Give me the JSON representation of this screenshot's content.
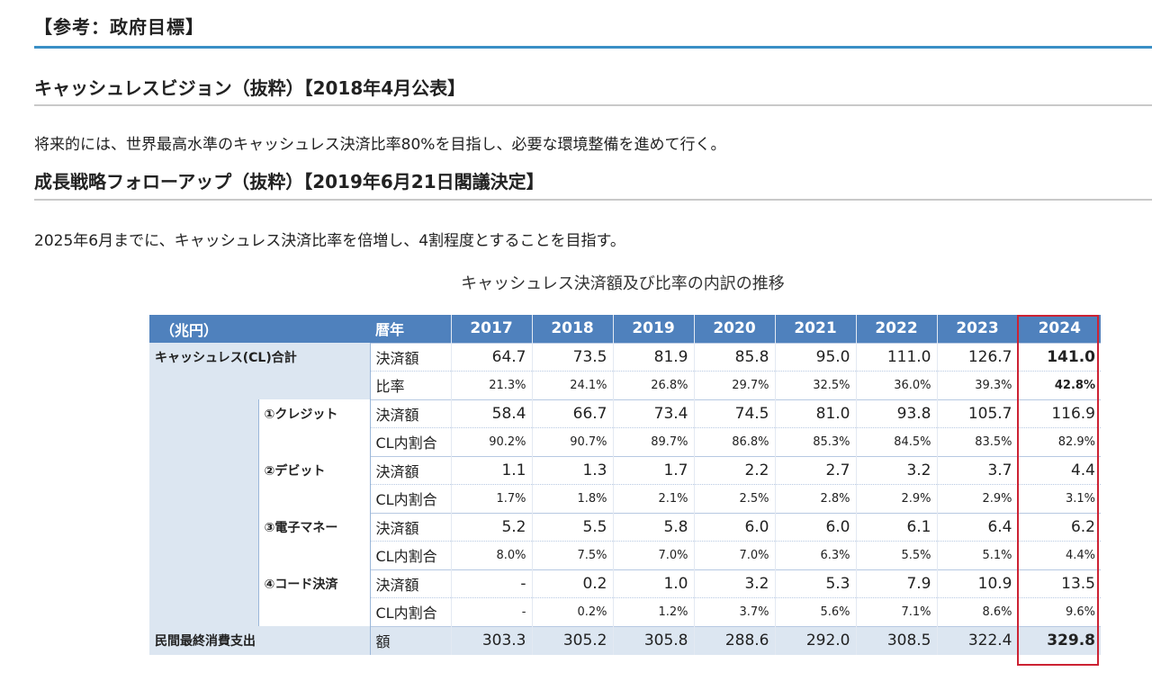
{
  "reference_heading": "【参考：政府目標】",
  "sections": [
    {
      "title": "キャッシュレスビジョン（抜粋）【2018年4月公表】",
      "text": "将来的には、世界最高水準のキャッシュレス決済比率80%を目指し、必要な環境整備を進めて行く。"
    },
    {
      "title": "成長戦略フォローアップ（抜粋）【2019年6月21日閣議決定】",
      "text": "2025年6月までに、キャッシュレス決済比率を倍増し、4割程度とすることを目指す。"
    }
  ],
  "table": {
    "title": "キャッシュレス決済額及び比率の内訳の推移",
    "unit": "（兆円）",
    "calendar_year": "暦年",
    "years": [
      "2017",
      "2018",
      "2019",
      "2020",
      "2021",
      "2022",
      "2023",
      "2024"
    ],
    "total": {
      "label": "キャッシュレス(CL)合計",
      "amount_label": "決済額",
      "amount": [
        "64.7",
        "73.5",
        "81.9",
        "85.8",
        "95.0",
        "111.0",
        "126.7",
        "141.0"
      ],
      "ratio_label": "比率",
      "ratio": [
        "21.3%",
        "24.1%",
        "26.8%",
        "29.7%",
        "32.5%",
        "36.0%",
        "39.3%",
        "42.8%"
      ]
    },
    "groups": [
      {
        "label": "①クレジット",
        "amount_label": "決済額",
        "amount": [
          "58.4",
          "66.7",
          "73.4",
          "74.5",
          "81.0",
          "93.8",
          "105.7",
          "116.9"
        ],
        "share_label": "CL内割合",
        "share": [
          "90.2%",
          "90.7%",
          "89.7%",
          "86.8%",
          "85.3%",
          "84.5%",
          "83.5%",
          "82.9%"
        ]
      },
      {
        "label": "②デビット",
        "amount_label": "決済額",
        "amount": [
          "1.1",
          "1.3",
          "1.7",
          "2.2",
          "2.7",
          "3.2",
          "3.7",
          "4.4"
        ],
        "share_label": "CL内割合",
        "share": [
          "1.7%",
          "1.8%",
          "2.1%",
          "2.5%",
          "2.8%",
          "2.9%",
          "2.9%",
          "3.1%"
        ]
      },
      {
        "label": "③電子マネー",
        "amount_label": "決済額",
        "amount": [
          "5.2",
          "5.5",
          "5.8",
          "6.0",
          "6.0",
          "6.1",
          "6.4",
          "6.2"
        ],
        "share_label": "CL内割合",
        "share": [
          "8.0%",
          "7.5%",
          "7.0%",
          "7.0%",
          "6.3%",
          "5.5%",
          "5.1%",
          "4.4%"
        ]
      },
      {
        "label": "④コード決済",
        "amount_label": "決済額",
        "amount": [
          "-",
          "0.2",
          "1.0",
          "3.2",
          "5.3",
          "7.9",
          "10.9",
          "13.5"
        ],
        "share_label": "CL内割合",
        "share": [
          "-",
          "0.2%",
          "1.2%",
          "3.7%",
          "5.6%",
          "7.1%",
          "8.6%",
          "9.6%"
        ]
      }
    ],
    "consumption": {
      "label": "民間最終消費支出",
      "amount_label": "額",
      "amount": [
        "303.3",
        "305.2",
        "305.8",
        "288.6",
        "292.0",
        "308.5",
        "322.4",
        "329.8"
      ]
    }
  },
  "colors": {
    "accent_line": "#3a8fc6",
    "header_bg": "#4f81bd",
    "label_bg": "#dce6f1",
    "highlight_border": "#cc2233"
  }
}
